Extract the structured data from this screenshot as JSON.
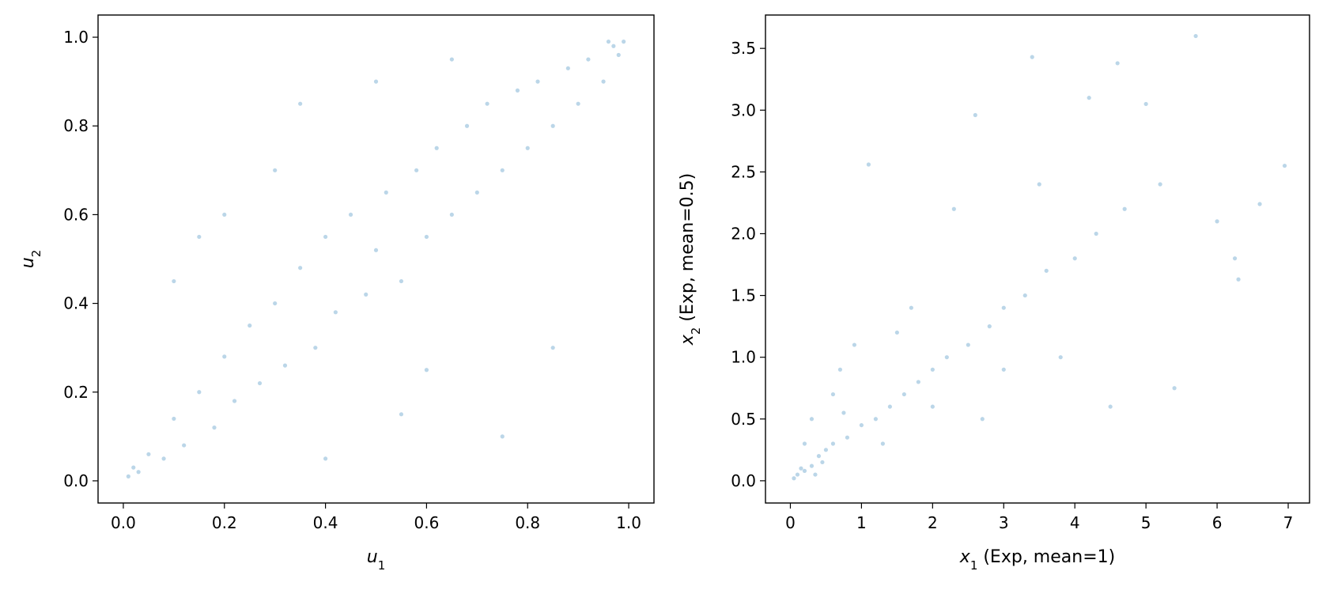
{
  "chart_data": [
    {
      "type": "scatter",
      "title": "",
      "xlabel": {
        "var": "u",
        "sub": "1",
        "rest": ""
      },
      "ylabel": {
        "var": "u",
        "sub": "2",
        "rest": ""
      },
      "xlim": [
        -0.05,
        1.05
      ],
      "ylim": [
        -0.05,
        1.05
      ],
      "xticks": [
        0.0,
        0.2,
        0.4,
        0.6,
        0.8,
        1.0
      ],
      "yticks": [
        0.0,
        0.2,
        0.4,
        0.6,
        0.8,
        1.0
      ],
      "xtick_labels": [
        "0.0",
        "0.2",
        "0.4",
        "0.6",
        "0.8",
        "1.0"
      ],
      "ytick_labels": [
        "0.0",
        "0.2",
        "0.4",
        "0.6",
        "0.8",
        "1.0"
      ],
      "grid": false,
      "legend": "none",
      "color": "#1f77b4",
      "alpha": 0.3,
      "description": "Dependent uniform copula sample: points concentrated along the diagonal from (0,0) to (1,1), densest near the corners.",
      "series": [
        {
          "points": [
            [
              0.01,
              0.01
            ],
            [
              0.02,
              0.03
            ],
            [
              0.03,
              0.02
            ],
            [
              0.05,
              0.06
            ],
            [
              0.08,
              0.05
            ],
            [
              0.1,
              0.14
            ],
            [
              0.12,
              0.08
            ],
            [
              0.15,
              0.2
            ],
            [
              0.18,
              0.12
            ],
            [
              0.2,
              0.28
            ],
            [
              0.22,
              0.18
            ],
            [
              0.25,
              0.35
            ],
            [
              0.27,
              0.22
            ],
            [
              0.3,
              0.4
            ],
            [
              0.32,
              0.26
            ],
            [
              0.35,
              0.48
            ],
            [
              0.38,
              0.3
            ],
            [
              0.4,
              0.55
            ],
            [
              0.42,
              0.38
            ],
            [
              0.45,
              0.6
            ],
            [
              0.48,
              0.42
            ],
            [
              0.5,
              0.52
            ],
            [
              0.52,
              0.65
            ],
            [
              0.55,
              0.45
            ],
            [
              0.58,
              0.7
            ],
            [
              0.6,
              0.55
            ],
            [
              0.62,
              0.75
            ],
            [
              0.65,
              0.6
            ],
            [
              0.68,
              0.8
            ],
            [
              0.7,
              0.65
            ],
            [
              0.72,
              0.85
            ],
            [
              0.75,
              0.7
            ],
            [
              0.78,
              0.88
            ],
            [
              0.8,
              0.75
            ],
            [
              0.82,
              0.9
            ],
            [
              0.85,
              0.8
            ],
            [
              0.88,
              0.93
            ],
            [
              0.9,
              0.85
            ],
            [
              0.92,
              0.95
            ],
            [
              0.95,
              0.9
            ],
            [
              0.97,
              0.98
            ],
            [
              0.99,
              0.99
            ],
            [
              0.98,
              0.96
            ],
            [
              0.96,
              0.99
            ],
            [
              0.1,
              0.45
            ],
            [
              0.2,
              0.6
            ],
            [
              0.35,
              0.85
            ],
            [
              0.4,
              0.05
            ],
            [
              0.55,
              0.15
            ],
            [
              0.75,
              0.1
            ],
            [
              0.85,
              0.3
            ],
            [
              0.65,
              0.95
            ],
            [
              0.5,
              0.9
            ],
            [
              0.3,
              0.7
            ],
            [
              0.15,
              0.55
            ],
            [
              0.6,
              0.25
            ]
          ]
        }
      ]
    },
    {
      "type": "scatter",
      "title": "",
      "xlabel": {
        "var": "x",
        "sub": "1",
        "rest": " (Exp, mean=1)"
      },
      "ylabel": {
        "var": "x",
        "sub": "2",
        "rest": " (Exp, mean=0.5)"
      },
      "xlim": [
        -0.35,
        7.3
      ],
      "ylim": [
        -0.18,
        3.77
      ],
      "xticks": [
        0,
        1,
        2,
        3,
        4,
        5,
        6,
        7
      ],
      "yticks": [
        0.0,
        0.5,
        1.0,
        1.5,
        2.0,
        2.5,
        3.0,
        3.5
      ],
      "xtick_labels": [
        "0",
        "1",
        "2",
        "3",
        "4",
        "5",
        "6",
        "7"
      ],
      "ytick_labels": [
        "0.0",
        "0.5",
        "1.0",
        "1.5",
        "2.0",
        "2.5",
        "3.0",
        "3.5"
      ],
      "grid": false,
      "legend": "none",
      "color": "#1f77b4",
      "alpha": 0.3,
      "description": "Exponential marginals of the same sample: dense cluster near the origin with a right-skewed positive-correlated tail.",
      "series": [
        {
          "points": [
            [
              0.05,
              0.02
            ],
            [
              0.1,
              0.05
            ],
            [
              0.2,
              0.08
            ],
            [
              0.3,
              0.12
            ],
            [
              0.4,
              0.2
            ],
            [
              0.5,
              0.25
            ],
            [
              0.6,
              0.3
            ],
            [
              0.8,
              0.35
            ],
            [
              1.0,
              0.45
            ],
            [
              1.2,
              0.5
            ],
            [
              1.4,
              0.6
            ],
            [
              1.6,
              0.7
            ],
            [
              1.8,
              0.8
            ],
            [
              2.0,
              0.9
            ],
            [
              2.2,
              1.0
            ],
            [
              2.5,
              1.1
            ],
            [
              2.8,
              1.25
            ],
            [
              3.0,
              1.4
            ],
            [
              3.3,
              1.5
            ],
            [
              3.6,
              1.7
            ],
            [
              4.0,
              1.8
            ],
            [
              4.3,
              2.0
            ],
            [
              4.7,
              2.2
            ],
            [
              5.2,
              2.4
            ],
            [
              5.7,
              3.6
            ],
            [
              6.0,
              2.1
            ],
            [
              6.3,
              1.63
            ],
            [
              6.6,
              2.24
            ],
            [
              6.95,
              2.55
            ],
            [
              4.6,
              3.38
            ],
            [
              3.4,
              3.43
            ],
            [
              4.2,
              3.1
            ],
            [
              2.6,
              2.96
            ],
            [
              1.1,
              2.56
            ],
            [
              0.7,
              0.9
            ],
            [
              1.5,
              1.2
            ],
            [
              2.3,
              2.2
            ],
            [
              3.8,
              1.0
            ],
            [
              5.4,
              0.75
            ],
            [
              4.5,
              0.6
            ],
            [
              0.3,
              0.5
            ],
            [
              0.6,
              0.7
            ],
            [
              0.9,
              1.1
            ],
            [
              1.3,
              0.3
            ],
            [
              2.0,
              0.6
            ],
            [
              3.0,
              0.9
            ],
            [
              0.2,
              0.3
            ],
            [
              0.15,
              0.1
            ],
            [
              0.45,
              0.15
            ],
            [
              0.75,
              0.55
            ],
            [
              1.7,
              1.4
            ],
            [
              2.7,
              0.5
            ],
            [
              3.5,
              2.4
            ],
            [
              5.0,
              3.05
            ],
            [
              6.25,
              1.8
            ],
            [
              0.35,
              0.05
            ]
          ]
        }
      ]
    }
  ]
}
